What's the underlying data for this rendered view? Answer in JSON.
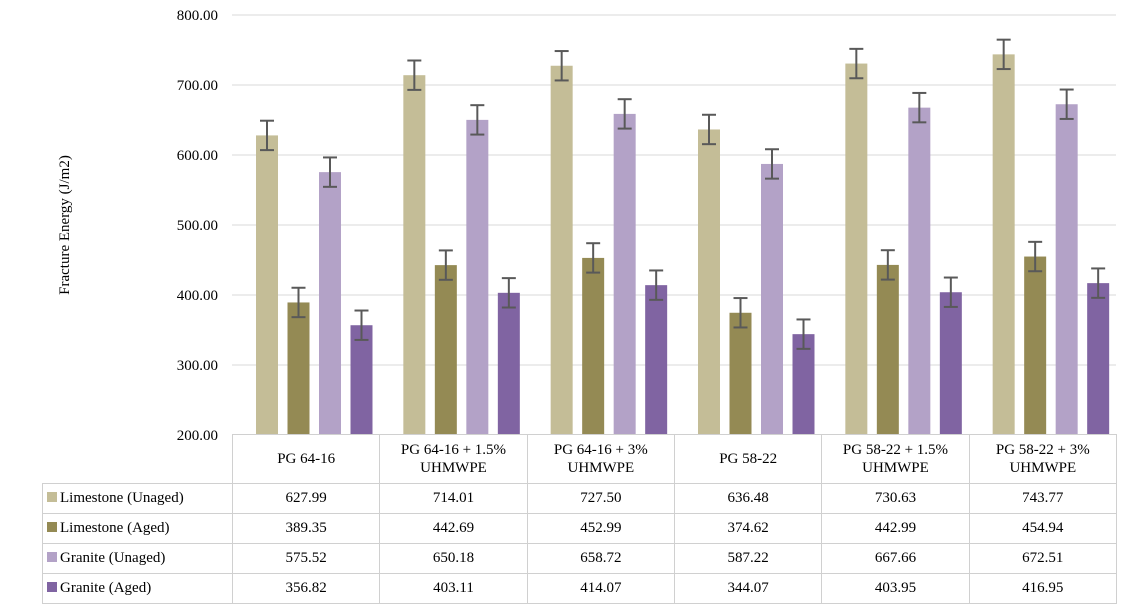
{
  "chart_data": {
    "type": "bar",
    "title": "",
    "xlabel": "",
    "ylabel": "Fracture Energy (J/m2)",
    "ylim": [
      200,
      800
    ],
    "yticks": [
      "200.00",
      "300.00",
      "400.00",
      "500.00",
      "600.00",
      "700.00",
      "800.00"
    ],
    "grid": true,
    "legend": "table",
    "error_bar": 21,
    "categories": [
      "PG 64-16",
      "PG 64-16 + 1.5%\nUHMWPE",
      "PG 64-16 + 3%\nUHMWPE",
      "PG 58-22",
      "PG 58-22 + 1.5%\nUHMWPE",
      "PG 58-22 + 3%\nUHMWPE"
    ],
    "series": [
      {
        "name": "Limestone (Unaged)",
        "color": "#c4bd97",
        "values": [
          627.99,
          714.01,
          727.5,
          636.48,
          730.63,
          743.77
        ],
        "labels": [
          "627.99",
          "714.01",
          "727.50",
          "636.48",
          "730.63",
          "743.77"
        ]
      },
      {
        "name": "Limestone (Aged)",
        "color": "#948a54",
        "values": [
          389.35,
          442.69,
          452.99,
          374.62,
          442.99,
          454.94
        ],
        "labels": [
          "389.35",
          "442.69",
          "452.99",
          "374.62",
          "442.99",
          "454.94"
        ]
      },
      {
        "name": "Granite (Unaged)",
        "color": "#b3a2c7",
        "values": [
          575.52,
          650.18,
          658.72,
          587.22,
          667.66,
          672.51
        ],
        "labels": [
          "575.52",
          "650.18",
          "658.72",
          "587.22",
          "667.66",
          "672.51"
        ]
      },
      {
        "name": "Granite (Aged)",
        "color": "#8064a2",
        "values": [
          356.82,
          403.11,
          414.07,
          344.07,
          403.95,
          416.95
        ],
        "labels": [
          "356.82",
          "403.11",
          "414.07",
          "344.07",
          "403.95",
          "416.95"
        ]
      }
    ]
  }
}
